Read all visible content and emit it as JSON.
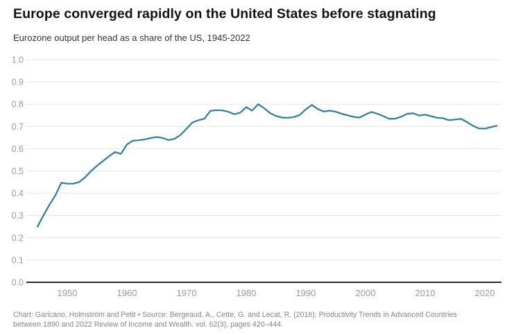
{
  "header": {
    "title": "Europe converged rapidly on the United States before stagnating",
    "subtitle": "Eurozone output per head as a share of the US, 1945-2022"
  },
  "footer": {
    "line1": "Chart: Garicano, Holmström and Petit • Source: Bergeaud, A., Cette, G. and Lecat, R. (2016):  Productivity Trends in Advanced Countries",
    "line2": "between 1890 and 2022  Review of Income and Wealth. vol. 62(3), pages 420–444."
  },
  "chart_data": {
    "type": "line",
    "title": "Europe converged rapidly on the United States before stagnating",
    "subtitle": "Eurozone output per head as a share of the US, 1945-2022",
    "series_name": "Eurozone output per head as a share of the US",
    "x": [
      1945,
      1946,
      1947,
      1948,
      1949,
      1950,
      1951,
      1952,
      1953,
      1954,
      1955,
      1956,
      1957,
      1958,
      1959,
      1960,
      1961,
      1962,
      1963,
      1964,
      1965,
      1966,
      1967,
      1968,
      1969,
      1970,
      1971,
      1972,
      1973,
      1974,
      1975,
      1976,
      1977,
      1978,
      1979,
      1980,
      1981,
      1982,
      1983,
      1984,
      1985,
      1986,
      1987,
      1988,
      1989,
      1990,
      1991,
      1992,
      1993,
      1994,
      1995,
      1996,
      1997,
      1998,
      1999,
      2000,
      2001,
      2002,
      2003,
      2004,
      2005,
      2006,
      2007,
      2008,
      2009,
      2010,
      2011,
      2012,
      2013,
      2014,
      2015,
      2016,
      2017,
      2018,
      2019,
      2020,
      2021,
      2022
    ],
    "y": [
      0.25,
      0.3,
      0.348,
      0.39,
      0.447,
      0.443,
      0.443,
      0.45,
      0.472,
      0.5,
      0.524,
      0.545,
      0.566,
      0.585,
      0.577,
      0.619,
      0.636,
      0.638,
      0.642,
      0.648,
      0.653,
      0.648,
      0.639,
      0.645,
      0.662,
      0.69,
      0.718,
      0.728,
      0.735,
      0.77,
      0.773,
      0.772,
      0.766,
      0.755,
      0.762,
      0.787,
      0.771,
      0.8,
      0.782,
      0.76,
      0.747,
      0.74,
      0.739,
      0.742,
      0.752,
      0.777,
      0.797,
      0.778,
      0.767,
      0.771,
      0.766,
      0.757,
      0.75,
      0.743,
      0.74,
      0.754,
      0.765,
      0.757,
      0.746,
      0.734,
      0.735,
      0.744,
      0.757,
      0.759,
      0.749,
      0.753,
      0.746,
      0.739,
      0.737,
      0.728,
      0.731,
      0.734,
      0.72,
      0.703,
      0.691,
      0.69,
      0.697,
      0.703
    ],
    "xlim": [
      1945,
      2022
    ],
    "ylim": [
      0.0,
      1.0
    ],
    "xticks": [
      1950,
      1960,
      1970,
      1980,
      1990,
      2000,
      2010,
      2020
    ],
    "yticks": [
      0.0,
      0.1,
      0.2,
      0.3,
      0.4,
      0.5,
      0.6,
      0.7,
      0.8,
      0.9,
      1.0
    ],
    "ytick_labels": [
      "0.0",
      "0.1",
      "0.2",
      "0.3",
      "0.4",
      "0.5",
      "0.6",
      "0.7",
      "0.8",
      "0.9",
      "1.0"
    ],
    "xlabel": "",
    "ylabel": "",
    "grid": "horizontal",
    "legend": "none",
    "line_color": "#2d7d9b",
    "grid_color": "#e4e4e4",
    "axis_color": "#2a2a2a",
    "tick_label_color": "#9b9b9b"
  }
}
